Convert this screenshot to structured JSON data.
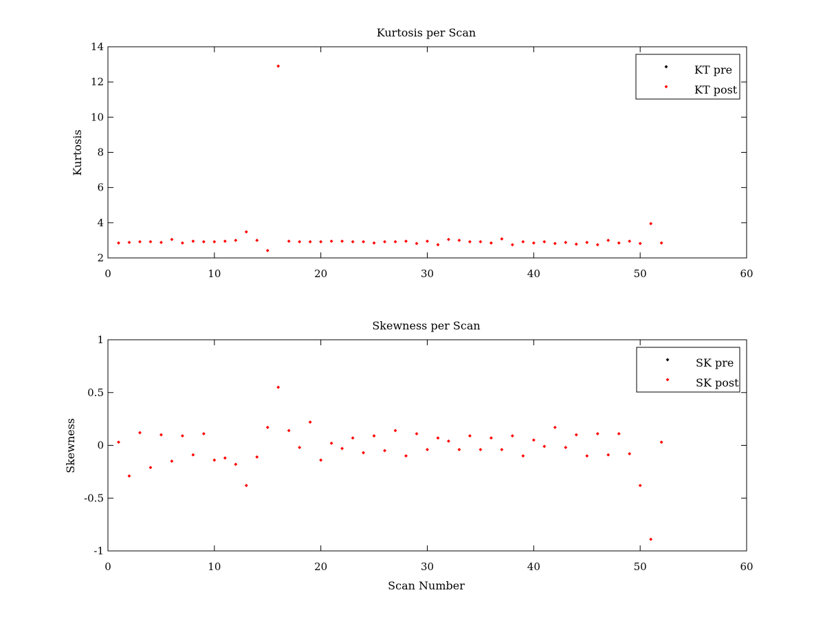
{
  "chart_data": [
    {
      "type": "scatter",
      "title": "Kurtosis per Scan",
      "xlabel": "",
      "ylabel": "Kurtosis",
      "xlim": [
        0,
        60
      ],
      "ylim": [
        2,
        14
      ],
      "xticks": [
        0,
        10,
        20,
        30,
        40,
        50,
        60
      ],
      "yticks": [
        2,
        4,
        6,
        8,
        10,
        12,
        14
      ],
      "grid": false,
      "legend_position": "top-right",
      "series": [
        {
          "name": "KT pre",
          "color": "#000000",
          "x": [],
          "y": []
        },
        {
          "name": "KT post",
          "color": "#ff0000",
          "x": [
            1,
            2,
            3,
            4,
            5,
            6,
            7,
            8,
            9,
            10,
            11,
            12,
            13,
            14,
            15,
            16,
            17,
            18,
            19,
            20,
            21,
            22,
            23,
            24,
            25,
            26,
            27,
            28,
            29,
            30,
            31,
            32,
            33,
            34,
            35,
            36,
            37,
            38,
            39,
            40,
            41,
            42,
            43,
            44,
            45,
            46,
            47,
            48,
            49,
            50,
            51,
            52
          ],
          "y": [
            2.85,
            2.88,
            2.92,
            2.92,
            2.88,
            3.05,
            2.85,
            2.95,
            2.92,
            2.92,
            2.95,
            3.0,
            3.48,
            3.0,
            2.42,
            12.9,
            2.95,
            2.92,
            2.92,
            2.92,
            2.95,
            2.95,
            2.92,
            2.92,
            2.85,
            2.92,
            2.92,
            2.95,
            2.82,
            2.95,
            2.75,
            3.05,
            3.0,
            2.92,
            2.92,
            2.85,
            3.08,
            2.75,
            2.92,
            2.85,
            2.92,
            2.82,
            2.88,
            2.78,
            2.88,
            2.75,
            3.0,
            2.85,
            2.95,
            2.82,
            3.95,
            2.85
          ]
        }
      ]
    },
    {
      "type": "scatter",
      "title": "Skewness per Scan",
      "xlabel": "Scan Number",
      "ylabel": "Skewness",
      "xlim": [
        0,
        60
      ],
      "ylim": [
        -1,
        1
      ],
      "xticks": [
        0,
        10,
        20,
        30,
        40,
        50,
        60
      ],
      "yticks": [
        -1,
        -0.5,
        0,
        0.5,
        1
      ],
      "grid": false,
      "legend_position": "top-right",
      "series": [
        {
          "name": "SK pre",
          "color": "#000000",
          "x": [],
          "y": []
        },
        {
          "name": "SK post",
          "color": "#ff0000",
          "x": [
            1,
            2,
            3,
            4,
            5,
            6,
            7,
            8,
            9,
            10,
            11,
            12,
            13,
            14,
            15,
            16,
            17,
            18,
            19,
            20,
            21,
            22,
            23,
            24,
            25,
            26,
            27,
            28,
            29,
            30,
            31,
            32,
            33,
            34,
            35,
            36,
            37,
            38,
            39,
            40,
            41,
            42,
            43,
            44,
            45,
            46,
            47,
            48,
            49,
            50,
            51,
            52
          ],
          "y": [
            0.03,
            -0.29,
            0.12,
            -0.21,
            0.1,
            -0.15,
            0.09,
            -0.09,
            0.11,
            -0.14,
            -0.12,
            -0.18,
            -0.38,
            -0.11,
            0.17,
            0.55,
            0.14,
            -0.02,
            0.22,
            -0.14,
            0.02,
            -0.03,
            0.07,
            -0.07,
            0.09,
            -0.05,
            0.14,
            -0.1,
            0.11,
            -0.04,
            0.07,
            0.04,
            -0.04,
            0.09,
            -0.04,
            0.07,
            -0.04,
            0.09,
            -0.1,
            0.05,
            -0.01,
            0.17,
            -0.02,
            0.1,
            -0.1,
            0.11,
            -0.09,
            0.11,
            -0.08,
            -0.38,
            -0.89,
            0.03
          ]
        }
      ]
    }
  ]
}
